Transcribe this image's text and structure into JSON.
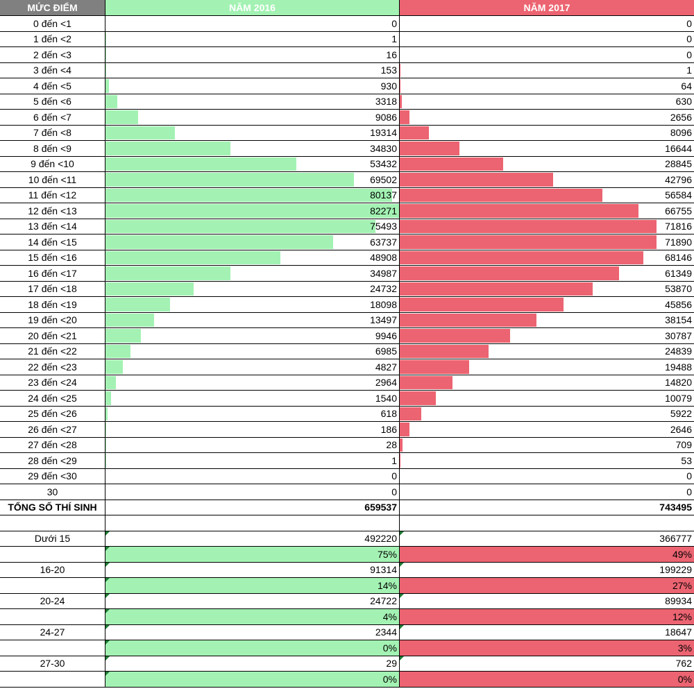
{
  "header": {
    "col_label": "MỨC ĐIỂM",
    "col_2016": "NĂM 2016",
    "col_2017": "NĂM 2017"
  },
  "rows": [
    {
      "label": "0 đến <1",
      "v2016": 0,
      "v2017": 0
    },
    {
      "label": "1 đến <2",
      "v2016": 1,
      "v2017": 0
    },
    {
      "label": "2 đến <3",
      "v2016": 16,
      "v2017": 0
    },
    {
      "label": "3 đến <4",
      "v2016": 153,
      "v2017": 1
    },
    {
      "label": "4 đến <5",
      "v2016": 930,
      "v2017": 64
    },
    {
      "label": "5 đến <6",
      "v2016": 3318,
      "v2017": 630
    },
    {
      "label": "6 đến <7",
      "v2016": 9086,
      "v2017": 2656
    },
    {
      "label": "7 đến <8",
      "v2016": 19314,
      "v2017": 8096
    },
    {
      "label": "8 đến <9",
      "v2016": 34830,
      "v2017": 16644
    },
    {
      "label": "9 đến <10",
      "v2016": 53432,
      "v2017": 28845
    },
    {
      "label": "10 đến <11",
      "v2016": 69502,
      "v2017": 42796
    },
    {
      "label": "11 đến <12",
      "v2016": 80137,
      "v2017": 56584
    },
    {
      "label": "12 đến <13",
      "v2016": 82271,
      "v2017": 66755
    },
    {
      "label": "13 đến <14",
      "v2016": 75493,
      "v2017": 71816
    },
    {
      "label": "14 đến <15",
      "v2016": 63737,
      "v2017": 71890
    },
    {
      "label": "15 đến <16",
      "v2016": 48908,
      "v2017": 68146
    },
    {
      "label": "16 đến <17",
      "v2016": 34987,
      "v2017": 61349
    },
    {
      "label": "17 đến <18",
      "v2016": 24732,
      "v2017": 53870
    },
    {
      "label": "18 đến <19",
      "v2016": 18098,
      "v2017": 45856
    },
    {
      "label": "19 đến <20",
      "v2016": 13497,
      "v2017": 38154
    },
    {
      "label": "20 đến <21",
      "v2016": 9946,
      "v2017": 30787
    },
    {
      "label": "21 đến <22",
      "v2016": 6985,
      "v2017": 24839
    },
    {
      "label": "22 đến <23",
      "v2016": 4827,
      "v2017": 19488
    },
    {
      "label": "23 đến <24",
      "v2016": 2964,
      "v2017": 14820
    },
    {
      "label": "24 đến <25",
      "v2016": 1540,
      "v2017": 10079
    },
    {
      "label": "25 đến <26",
      "v2016": 618,
      "v2017": 5922
    },
    {
      "label": "26 đến <27",
      "v2016": 186,
      "v2017": 2646
    },
    {
      "label": "27 đến <28",
      "v2016": 28,
      "v2017": 709
    },
    {
      "label": "28 đến <29",
      "v2016": 1,
      "v2017": 53
    },
    {
      "label": "29 đến <30",
      "v2016": 0,
      "v2017": 0
    },
    {
      "label": "30",
      "v2016": 0,
      "v2017": 0
    }
  ],
  "total": {
    "label": "TỔNG SỐ THÍ SINH",
    "v2016": 659537,
    "v2017": 743495
  },
  "groups": [
    {
      "label": "Dưới 15",
      "count2016": 492220,
      "count2017": 366777,
      "pct2016": "75%",
      "pct2017": "49%"
    },
    {
      "label": "16-20",
      "count2016": 91314,
      "count2017": 199229,
      "pct2016": "14%",
      "pct2017": "27%"
    },
    {
      "label": "20-24",
      "count2016": 24722,
      "count2017": 89934,
      "pct2016": "4%",
      "pct2017": "12%"
    },
    {
      "label": "24-27",
      "count2016": 2344,
      "count2017": 18647,
      "pct2016": "0%",
      "pct2017": "3%"
    },
    {
      "label": "27-30",
      "count2016": 29,
      "count2017": 762,
      "pct2016": "0%",
      "pct2017": "0%"
    }
  ],
  "colors": {
    "green": "#a3f2b3",
    "red": "#ec6471",
    "header_gray": "#808080",
    "comment_marker": "#1e7b34"
  }
}
